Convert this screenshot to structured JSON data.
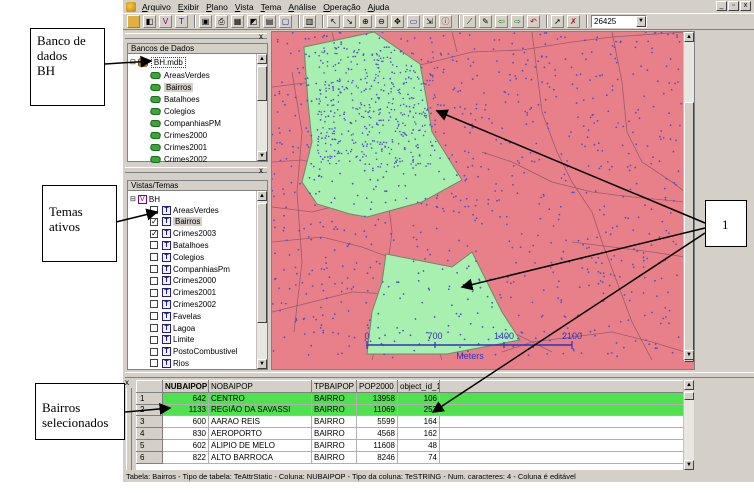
{
  "menu": [
    "Arquivo",
    "Exibir",
    "Plano",
    "Vista",
    "Tema",
    "Análise",
    "Operação",
    "Ajuda"
  ],
  "window_controls": [
    "_",
    "▫",
    "x"
  ],
  "toolbar": {
    "scale_value": "26425"
  },
  "db_panel": {
    "header": "Bancos de Dados",
    "database": "BH.mdb",
    "tables": [
      "AreasVerdes",
      "Bairros",
      "Batalhoes",
      "Colegios",
      "CompanhiasPM",
      "Crimes2000",
      "Crimes2001",
      "Crimes2002"
    ],
    "selected_table": "Bairros"
  },
  "themes_panel": {
    "header": "Vistas/Temas",
    "view": "BH",
    "themes": [
      {
        "name": "AreasVerdes",
        "checked": false
      },
      {
        "name": "Bairros",
        "checked": true
      },
      {
        "name": "Crimes2003",
        "checked": true
      },
      {
        "name": "Batalhoes",
        "checked": false
      },
      {
        "name": "Colegios",
        "checked": false
      },
      {
        "name": "CompanhiasPm",
        "checked": false
      },
      {
        "name": "Crimes2000",
        "checked": false
      },
      {
        "name": "Crimes2001",
        "checked": false
      },
      {
        "name": "Crimes2002",
        "checked": false
      },
      {
        "name": "Favelas",
        "checked": false
      },
      {
        "name": "Lagoa",
        "checked": false
      },
      {
        "name": "Limite",
        "checked": false
      },
      {
        "name": "PostoCombustivel",
        "checked": false
      },
      {
        "name": "Rios",
        "checked": false
      }
    ]
  },
  "map": {
    "scale_ticks": [
      "0",
      "700",
      "1400",
      "2100"
    ],
    "scale_unit": "Meters",
    "colors": {
      "background": "#e8808a",
      "selected": "#a8f0b0",
      "points": "#5050c8",
      "boundary": "#a06070"
    }
  },
  "table": {
    "columns": [
      "NUBAIPOP",
      "NOBAIPOP",
      "TPBAIPOP",
      "POP2000",
      "object_id_1"
    ],
    "rows": [
      {
        "n": "1",
        "nubaipop": "642",
        "nobaipop": "CENTRO",
        "tp": "BAIRRO",
        "pop": "13958",
        "oid": "106",
        "highlight": true
      },
      {
        "n": "2",
        "nubaipop": "1133",
        "nobaipop": "REGIÃO DA SAVASSI",
        "tp": "BAIRRO",
        "pop": "11069",
        "oid": "252",
        "highlight": true
      },
      {
        "n": "3",
        "nubaipop": "600",
        "nobaipop": "AARAO REIS",
        "tp": "BAIRRO",
        "pop": "5599",
        "oid": "164",
        "highlight": false
      },
      {
        "n": "4",
        "nubaipop": "830",
        "nobaipop": "AEROPORTO",
        "tp": "BAIRRO",
        "pop": "4568",
        "oid": "162",
        "highlight": false
      },
      {
        "n": "5",
        "nubaipop": "602",
        "nobaipop": "ALIPIO DE MELO",
        "tp": "BAIRRO",
        "pop": "11608",
        "oid": "48",
        "highlight": false
      },
      {
        "n": "6",
        "nubaipop": "822",
        "nobaipop": "ALTO BARROCA",
        "tp": "BAIRRO",
        "pop": "8246",
        "oid": "74",
        "highlight": false
      }
    ]
  },
  "status": "Tabela: Bairros - Tipo de tabela: TeAttrStatic - Coluna: NUBAIPOP - Tipo da coluna: TeSTRING - Num. caracteres: 4 - Coluna é editável",
  "annotations": {
    "db": [
      "Banco de",
      "dados",
      "BH"
    ],
    "themes": [
      "Temas",
      "ativos"
    ],
    "one": "1",
    "bairros": [
      "Bairros",
      "selecionados"
    ]
  }
}
